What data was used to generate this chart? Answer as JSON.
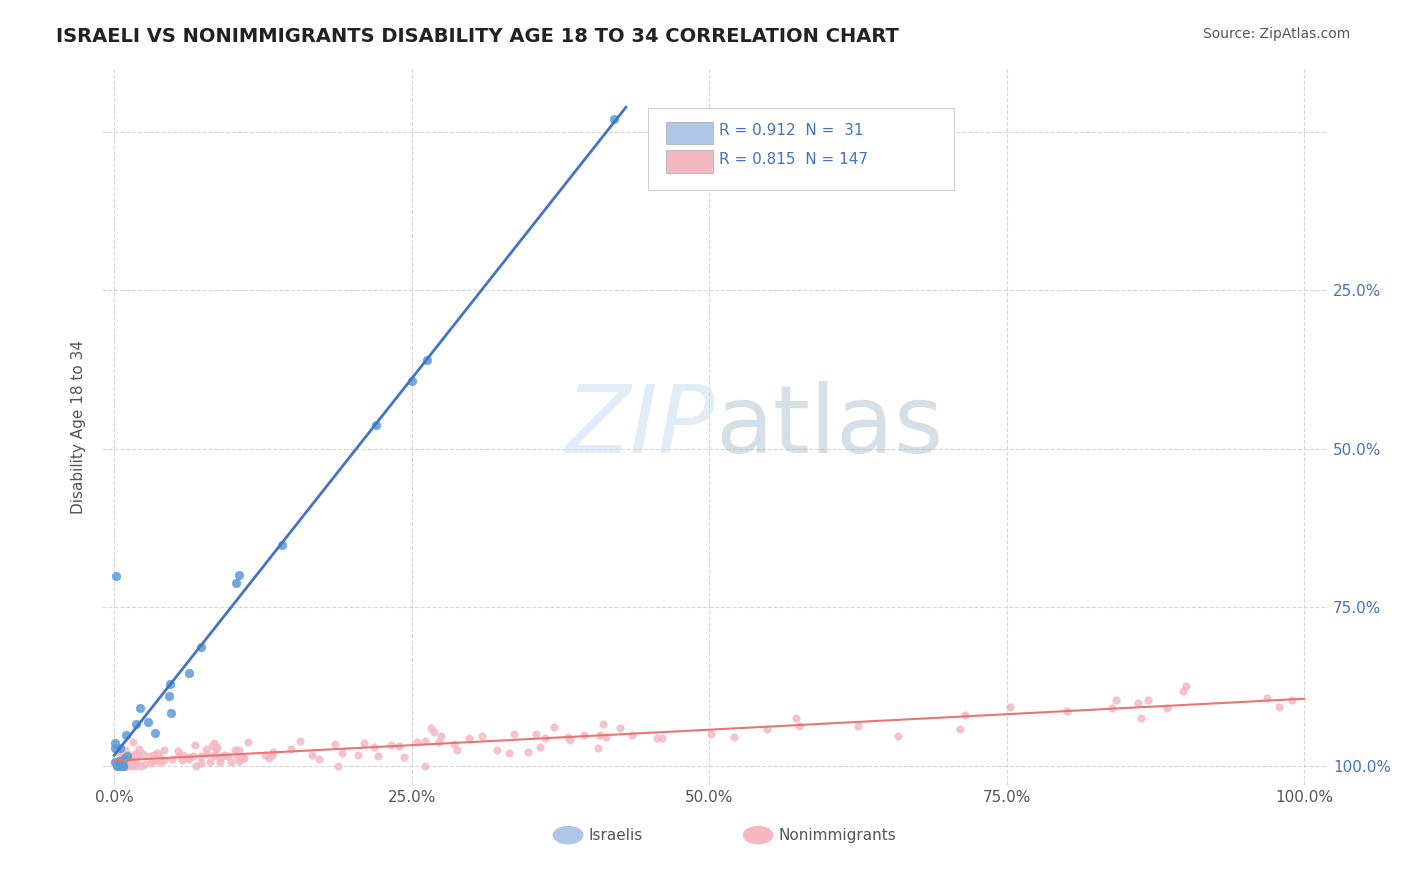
{
  "title": "ISRAELI VS NONIMMIGRANTS DISABILITY AGE 18 TO 34 CORRELATION CHART",
  "source": "Source: ZipAtlas.com",
  "ylabel": "Disability Age 18 to 34",
  "legend_entries": [
    {
      "label": "Israelis",
      "color": "#aec6e8",
      "R": 0.912,
      "N": 31
    },
    {
      "label": "Nonimmigrants",
      "color": "#f4b8c1",
      "R": 0.815,
      "N": 147
    }
  ],
  "israeli_color": "#5b9bd5",
  "nonimm_color": "#f4b8c1",
  "israeli_line_color": "#4472c4",
  "nonimm_line_color": "#e87572",
  "bg_color": "#ffffff",
  "grid_color": "#cccccc",
  "title_color": "#222222",
  "legend_text_color": "#4472c4"
}
